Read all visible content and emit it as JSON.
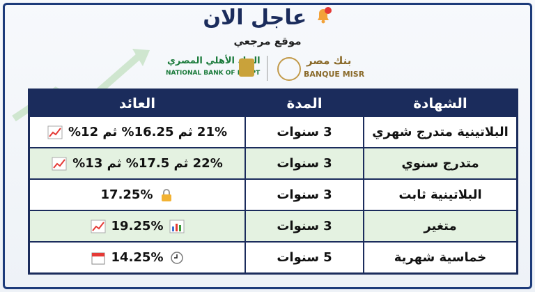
{
  "header": {
    "title": "عاجل الان",
    "subtitle": "موقع مرجعي"
  },
  "logos": {
    "nbe_arabic": "البنك الأهلي المصري",
    "nbe_english": "NATIONAL BANK OF EGYPT",
    "misr_arabic": "بنك مصر",
    "misr_english": "BANQUE MISR"
  },
  "table": {
    "header": [
      "الشهادة",
      "المدة",
      "العائد"
    ],
    "rows": [
      [
        "البلاتينية متدرج شهري",
        "3 سنوات",
        "21% ثم 16.25% ثم 12%"
      ],
      [
        "متدرج سنوي",
        "3 سنوات",
        "22% ثم 17.5% ثم 13%"
      ],
      [
        "البلاتينية ثابت",
        "3 سنوات",
        "17.25%"
      ],
      [
        "متغير",
        "3 سنوات",
        "19.25%"
      ],
      [
        "خماسية شهرية",
        "5 سنوات",
        "14.25%"
      ]
    ]
  }
}
